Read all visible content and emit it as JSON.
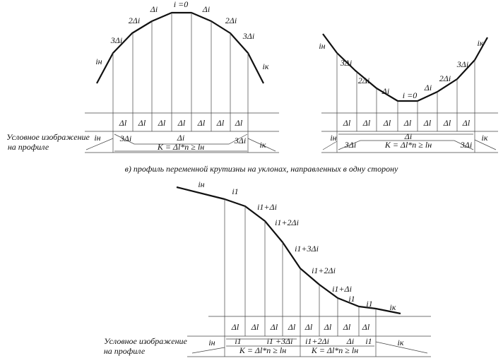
{
  "top_left": {
    "slopes": [
      "iн",
      "3Δi",
      "2Δi",
      "Δi",
      "i =0",
      "Δi",
      "2Δi",
      "3Δi",
      "iк"
    ],
    "cells": [
      "Δl",
      "Δl",
      "Δl",
      "Δl",
      "Δl",
      "Δl",
      "Δl"
    ],
    "caption": [
      "Условное изображение",
      "на профиле"
    ],
    "strip": {
      "start": "iн",
      "left": "3Δi",
      "delta": "Δi",
      "formula": "K = Δl*n ≥ lн",
      "right": "3Δi",
      "end": "iк"
    }
  },
  "top_right": {
    "slopes": [
      "iн",
      "3Δi",
      "2Δi",
      "Δi",
      "i =0",
      "Δi",
      "2Δi",
      "3Δi",
      "iк"
    ],
    "cells": [
      "Δl",
      "Δl",
      "Δl",
      "Δl",
      "Δl",
      "Δl",
      "Δl"
    ],
    "strip": {
      "start": "iн",
      "left": "3Δi",
      "delta": "Δi",
      "formula": "K = Δl*n ≥ lн",
      "right": "3Δi",
      "end": "iк"
    }
  },
  "section_caption": "в) профиль переменной крутизны на уклонах, направленных в одну сторону",
  "bottom": {
    "slopes": [
      "iн",
      "i1",
      "i1+Δi",
      "i1+2Δi",
      "i1+3Δi",
      "i1+2Δi",
      "i1+Δi",
      "i1",
      "i1",
      "iк"
    ],
    "cells": [
      "Δl",
      "Δl",
      "Δl",
      "Δl",
      "Δl",
      "Δl",
      "Δl",
      "Δl"
    ],
    "caption": [
      "Условное изображение",
      "на профиле"
    ],
    "strip": {
      "start": "iн",
      "seg1": "i1",
      "seg2": "i1 +3Δi",
      "seg3": "i1+2Δi",
      "seg4": "Δi",
      "seg5": "i1",
      "end": "iк",
      "formula_left": "K = Δl*n ≥ lн",
      "formula_right": "K = Δl*n ≥ lн"
    }
  }
}
